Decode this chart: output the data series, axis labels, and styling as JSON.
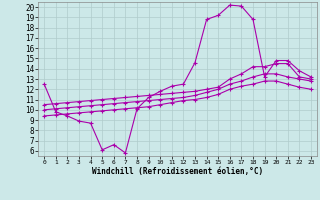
{
  "xlabel": "Windchill (Refroidissement éolien,°C)",
  "background_color": "#cce8e8",
  "grid_color": "#b0cccc",
  "line_color": "#aa00aa",
  "x": [
    0,
    1,
    2,
    3,
    4,
    5,
    6,
    7,
    8,
    9,
    10,
    11,
    12,
    13,
    14,
    15,
    16,
    17,
    18,
    19,
    20,
    21,
    22,
    23
  ],
  "series1": [
    12.5,
    9.8,
    9.4,
    8.9,
    8.7,
    6.1,
    6.6,
    5.8,
    10.1,
    11.2,
    11.8,
    12.3,
    12.5,
    14.6,
    18.8,
    19.2,
    20.2,
    20.1,
    18.8,
    13.2,
    14.8,
    14.8,
    13.8,
    13.2
  ],
  "series2": [
    10.5,
    10.6,
    10.7,
    10.8,
    10.9,
    11.0,
    11.1,
    11.2,
    11.3,
    11.4,
    11.5,
    11.6,
    11.7,
    11.8,
    12.0,
    12.2,
    13.0,
    13.5,
    14.2,
    14.2,
    14.5,
    14.5,
    13.2,
    13.0
  ],
  "series3": [
    10.0,
    10.1,
    10.2,
    10.3,
    10.4,
    10.5,
    10.6,
    10.7,
    10.8,
    10.9,
    11.0,
    11.1,
    11.2,
    11.4,
    11.7,
    12.0,
    12.5,
    12.8,
    13.2,
    13.5,
    13.5,
    13.2,
    13.0,
    12.8
  ],
  "series4": [
    9.4,
    9.5,
    9.6,
    9.7,
    9.8,
    9.9,
    10.0,
    10.1,
    10.2,
    10.3,
    10.5,
    10.7,
    10.9,
    11.0,
    11.2,
    11.5,
    12.0,
    12.3,
    12.5,
    12.8,
    12.8,
    12.5,
    12.2,
    12.0
  ],
  "xlim": [
    -0.5,
    23.5
  ],
  "ylim": [
    5.5,
    20.5
  ],
  "yticks": [
    6,
    7,
    8,
    9,
    10,
    11,
    12,
    13,
    14,
    15,
    16,
    17,
    18,
    19,
    20
  ],
  "xticks": [
    0,
    1,
    2,
    3,
    4,
    5,
    6,
    7,
    8,
    9,
    10,
    11,
    12,
    13,
    14,
    15,
    16,
    17,
    18,
    19,
    20,
    21,
    22,
    23
  ],
  "marker": "+"
}
